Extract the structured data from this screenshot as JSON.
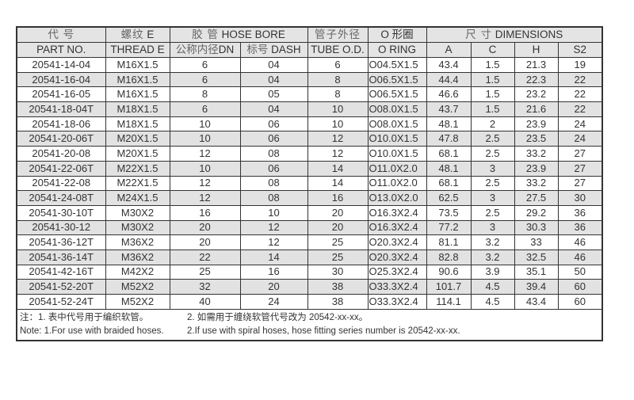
{
  "header": {
    "part_cn": "代 号",
    "part_en": "PART NO.",
    "thread_cn": "螺纹",
    "thread_e": "E",
    "thread_en": "THREAD E",
    "hose_cn": "胶 管",
    "hose_en": "HOSE BORE",
    "dn_cn": "公称内径",
    "dn_en": "DN",
    "dash_cn": "标号",
    "dash_en": "DASH",
    "tube_cn": "管子外径",
    "tube_en": "TUBE O.D.",
    "oring_cn": "O 形圈",
    "oring_en": "O RING",
    "dim_cn": "尺 寸",
    "dim_en": "DIMENSIONS",
    "a": "A",
    "c": "C",
    "h": "H",
    "s2": "S2"
  },
  "rows": [
    [
      "20541-14-04",
      "M16X1.5",
      "6",
      "04",
      "6",
      "O04.5X1.5",
      "43.4",
      "1.5",
      "21.3",
      "19"
    ],
    [
      "20541-16-04",
      "M16X1.5",
      "6",
      "04",
      "8",
      "O06.5X1.5",
      "44.4",
      "1.5",
      "22.3",
      "22"
    ],
    [
      "20541-16-05",
      "M16X1.5",
      "8",
      "05",
      "8",
      "O06.5X1.5",
      "46.6",
      "1.5",
      "23.2",
      "22"
    ],
    [
      "20541-18-04T",
      "M18X1.5",
      "6",
      "04",
      "10",
      "O08.0X1.5",
      "43.7",
      "1.5",
      "21.6",
      "22"
    ],
    [
      "20541-18-06",
      "M18X1.5",
      "10",
      "06",
      "10",
      "O08.0X1.5",
      "48.1",
      "2",
      "23.9",
      "24"
    ],
    [
      "20541-20-06T",
      "M20X1.5",
      "10",
      "06",
      "12",
      "O10.0X1.5",
      "47.8",
      "2.5",
      "23.5",
      "24"
    ],
    [
      "20541-20-08",
      "M20X1.5",
      "12",
      "08",
      "12",
      "O10.0X1.5",
      "68.1",
      "2.5",
      "33.2",
      "27"
    ],
    [
      "20541-22-06T",
      "M22X1.5",
      "10",
      "06",
      "14",
      "O11.0X2.0",
      "48.1",
      "3",
      "23.9",
      "27"
    ],
    [
      "20541-22-08",
      "M22X1.5",
      "12",
      "08",
      "14",
      "O11.0X2.0",
      "68.1",
      "2.5",
      "33.2",
      "27"
    ],
    [
      "20541-24-08T",
      "M24X1.5",
      "12",
      "08",
      "16",
      "O13.0X2.0",
      "62.5",
      "3",
      "27.5",
      "30"
    ],
    [
      "20541-30-10T",
      "M30X2",
      "16",
      "10",
      "20",
      "O16.3X2.4",
      "73.5",
      "2.5",
      "29.2",
      "36"
    ],
    [
      "20541-30-12",
      "M30X2",
      "20",
      "12",
      "20",
      "O16.3X2.4",
      "77.2",
      "3",
      "30.3",
      "36"
    ],
    [
      "20541-36-12T",
      "M36X2",
      "20",
      "12",
      "25",
      "O20.3X2.4",
      "81.1",
      "3.2",
      "33",
      "46"
    ],
    [
      "20541-36-14T",
      "M36X2",
      "22",
      "14",
      "25",
      "O20.3X2.4",
      "82.8",
      "3.2",
      "32.5",
      "46"
    ],
    [
      "20541-42-16T",
      "M42X2",
      "25",
      "16",
      "30",
      "O25.3X2.4",
      "90.6",
      "3.9",
      "35.1",
      "50"
    ],
    [
      "20541-52-20T",
      "M52X2",
      "32",
      "20",
      "38",
      "O33.3X2.4",
      "101.7",
      "4.5",
      "39.4",
      "60"
    ],
    [
      "20541-52-24T",
      "M52X2",
      "40",
      "24",
      "38",
      "O33.3X2.4",
      "114.1",
      "4.5",
      "43.4",
      "60"
    ]
  ],
  "notes": {
    "cn1": "注：1. 表中代号用于编织软管。",
    "cn2": "2. 如需用于缠绕软管代号改为 20542-xx-xx。",
    "en1": "Note: 1.For use with braided hoses.",
    "en2": "2.If use with spiral hoses, hose fitting series number is 20542-xx-xx."
  }
}
